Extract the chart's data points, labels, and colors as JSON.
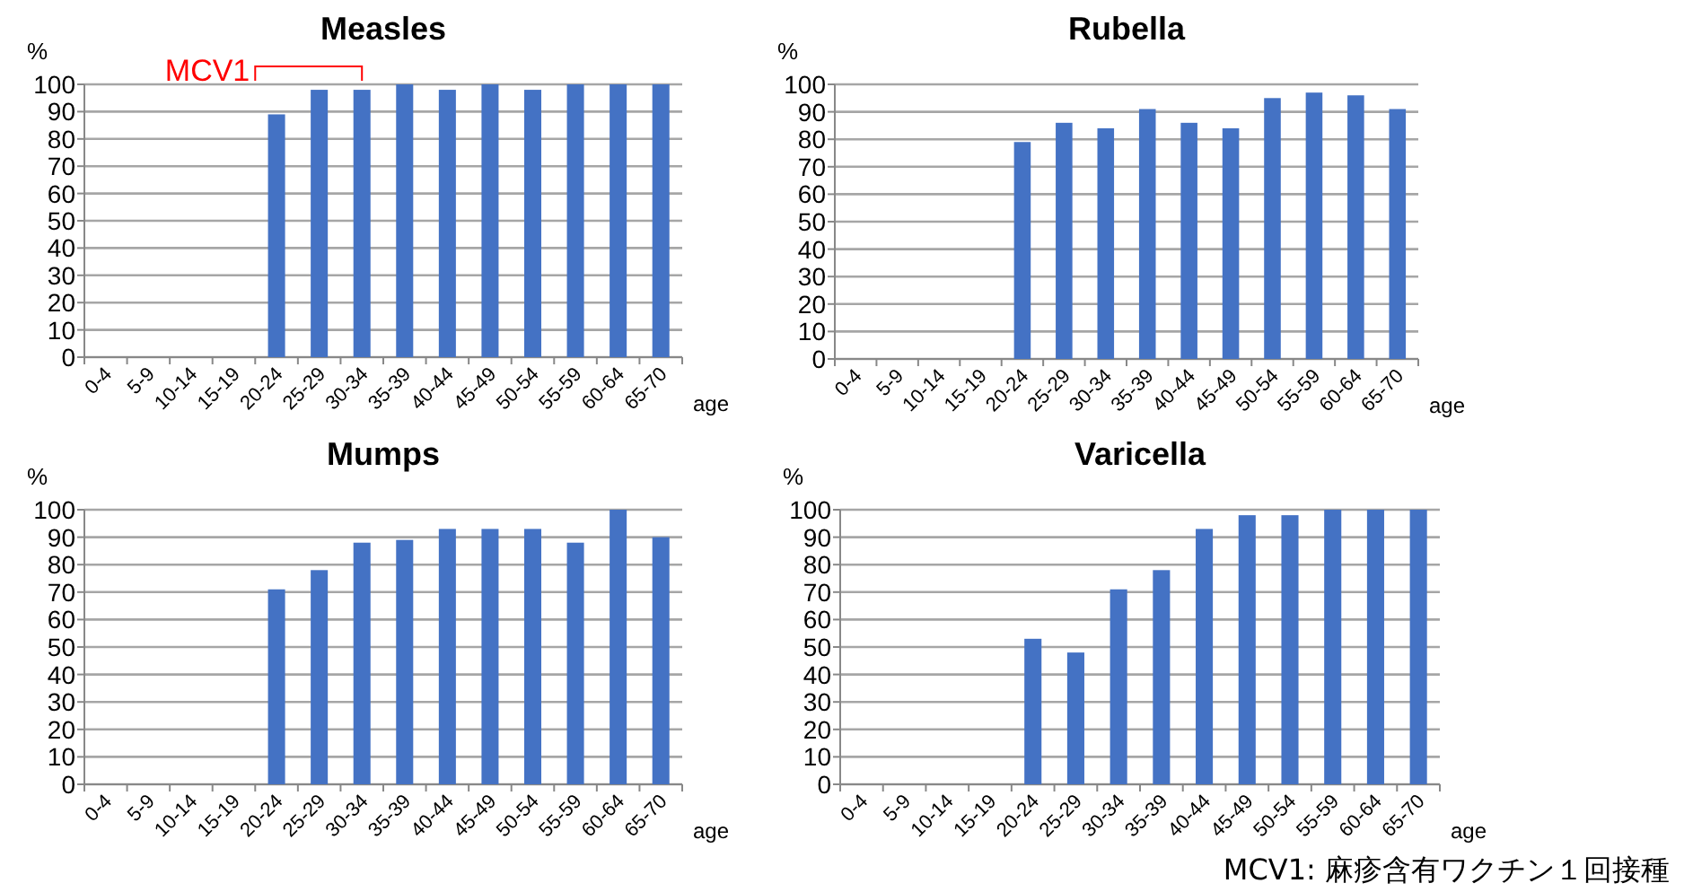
{
  "chart_data": [
    {
      "type": "bar",
      "title": "Measles",
      "ylabel": "%",
      "xlabel": "age",
      "categories": [
        "0-4",
        "5-9",
        "10-14",
        "15-19",
        "20-24",
        "25-29",
        "30-34",
        "35-39",
        "40-44",
        "45-49",
        "50-54",
        "55-59",
        "60-64",
        "65-70"
      ],
      "values": [
        null,
        null,
        null,
        null,
        89,
        98,
        98,
        100,
        98,
        100,
        98,
        100,
        100,
        100
      ],
      "color": "#4472c4",
      "ylim": [
        0,
        100
      ],
      "yticks": [
        0,
        10,
        20,
        30,
        40,
        50,
        60,
        70,
        80,
        90,
        100
      ],
      "grid": "y",
      "annotations": [
        "MCV1"
      ]
    },
    {
      "type": "bar",
      "title": "Rubella",
      "ylabel": "%",
      "xlabel": "age",
      "categories": [
        "0-4",
        "5-9",
        "10-14",
        "15-19",
        "20-24",
        "25-29",
        "30-34",
        "35-39",
        "40-44",
        "45-49",
        "50-54",
        "55-59",
        "60-64",
        "65-70"
      ],
      "values": [
        null,
        null,
        null,
        null,
        79,
        86,
        84,
        91,
        86,
        84,
        95,
        97,
        96,
        91
      ],
      "color": "#4472c4",
      "ylim": [
        0,
        100
      ],
      "yticks": [
        0,
        10,
        20,
        30,
        40,
        50,
        60,
        70,
        80,
        90,
        100
      ],
      "grid": "y"
    },
    {
      "type": "bar",
      "title": "Mumps",
      "ylabel": "%",
      "xlabel": "age",
      "categories": [
        "0-4",
        "5-9",
        "10-14",
        "15-19",
        "20-24",
        "25-29",
        "30-34",
        "35-39",
        "40-44",
        "45-49",
        "50-54",
        "55-59",
        "60-64",
        "65-70"
      ],
      "values": [
        null,
        null,
        null,
        null,
        71,
        78,
        88,
        89,
        93,
        93,
        93,
        88,
        100,
        90
      ],
      "color": "#4472c4",
      "ylim": [
        0,
        100
      ],
      "yticks": [
        0,
        10,
        20,
        30,
        40,
        50,
        60,
        70,
        80,
        90,
        100
      ],
      "grid": "y"
    },
    {
      "type": "bar",
      "title": "Varicella",
      "ylabel": "%",
      "xlabel": "age",
      "categories": [
        "0-4",
        "5-9",
        "10-14",
        "15-19",
        "20-24",
        "25-29",
        "30-34",
        "35-39",
        "40-44",
        "45-49",
        "50-54",
        "55-59",
        "60-64",
        "65-70"
      ],
      "values": [
        null,
        null,
        null,
        null,
        53,
        48,
        71,
        78,
        93,
        98,
        98,
        100,
        100,
        100
      ],
      "color": "#4472c4",
      "ylim": [
        0,
        100
      ],
      "yticks": [
        0,
        10,
        20,
        30,
        40,
        50,
        60,
        70,
        80,
        90,
        100
      ],
      "grid": "y",
      "annotations": [
        "MCV1: 麻疹含有ワクチン１回接種"
      ]
    }
  ]
}
